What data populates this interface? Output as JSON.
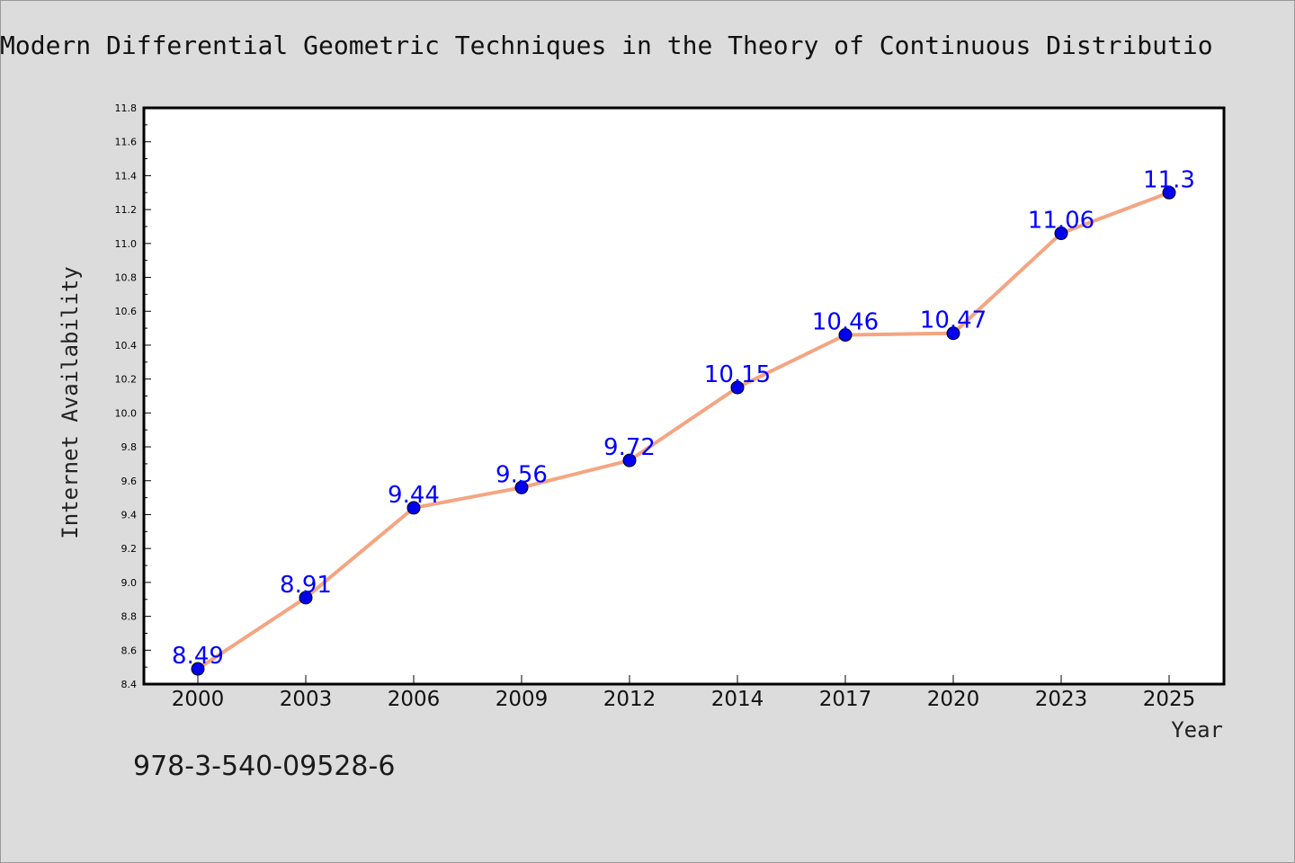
{
  "chart_data": {
    "type": "line",
    "title": "Modern Differential Geometric Techniques in the Theory of Continuous Distributio",
    "xlabel": "Year",
    "ylabel": "Internet Availability",
    "categories": [
      "2000",
      "2003",
      "2006",
      "2009",
      "2012",
      "2014",
      "2017",
      "2020",
      "2023",
      "2025"
    ],
    "series": [
      {
        "values": [
          8.49,
          8.91,
          9.44,
          9.56,
          9.72,
          10.15,
          10.46,
          10.47,
          11.06,
          11.3
        ],
        "labels": [
          "8.49",
          "8.91",
          "9.44",
          "9.56",
          "9.72",
          "10.15",
          "10.46",
          "10.47",
          "11.06",
          "11.3"
        ],
        "line_color": "#f4a582",
        "marker_color": "#0000ee",
        "label_color": "#0000ff"
      }
    ],
    "ylim": [
      8.4,
      11.8
    ],
    "yticks": [
      "8.4",
      "8.6",
      "8.8",
      "9.0",
      "9.2",
      "9.4",
      "9.6",
      "9.8",
      "10.0",
      "10.2",
      "10.4",
      "10.6",
      "10.8",
      "11.0",
      "11.2",
      "11.4",
      "11.6",
      "11.8"
    ],
    "grid": false,
    "legend": "none"
  },
  "footer": {
    "isbn": "978-3-540-09528-6"
  }
}
